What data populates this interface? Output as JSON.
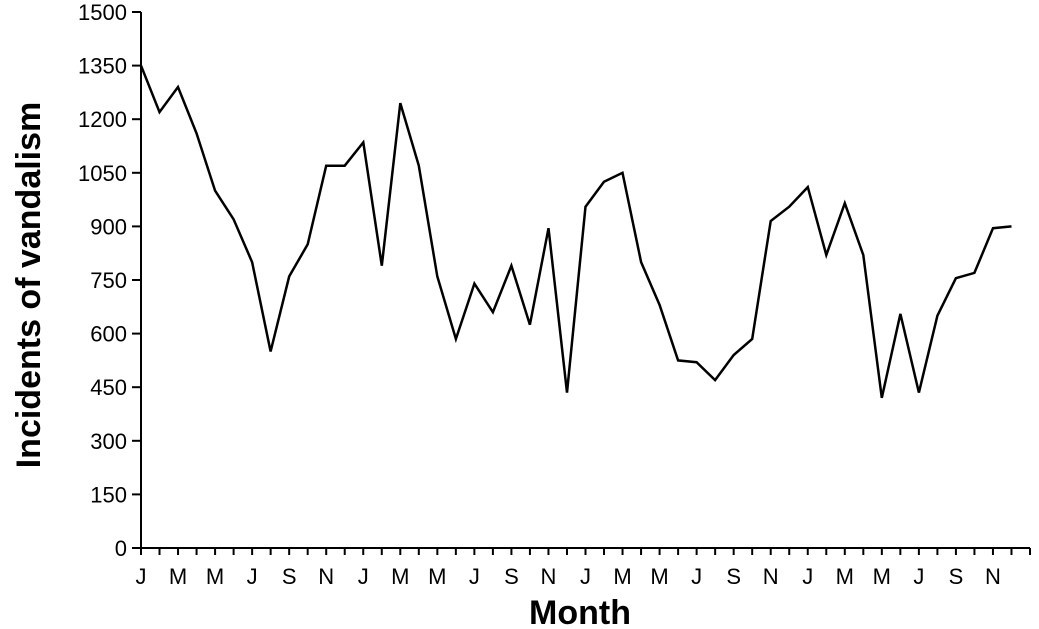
{
  "chart_data": {
    "type": "line",
    "title": "",
    "xlabel": "Month",
    "ylabel": "Incidents of vandalism",
    "ylim": [
      0,
      1500
    ],
    "yticks": [
      0,
      150,
      300,
      450,
      600,
      750,
      900,
      1050,
      1200,
      1350,
      1500
    ],
    "ytick_labels": [
      "0",
      "150",
      "300",
      "450",
      "600",
      "750",
      "900",
      "1050",
      "1200",
      "1350",
      "1500"
    ],
    "xtick_labels": [
      "J",
      "M",
      "M",
      "J",
      "S",
      "N",
      "J",
      "M",
      "M",
      "J",
      "S",
      "N",
      "J",
      "M",
      "M",
      "J",
      "S",
      "N",
      "J",
      "M",
      "M",
      "J",
      "S",
      "N"
    ],
    "grid": false,
    "line_color": "#000000",
    "series": [
      {
        "values": [
          1350,
          1220,
          1290,
          1160,
          1000,
          920,
          800,
          550,
          760,
          850,
          1070,
          1070,
          1135,
          790,
          1245,
          1070,
          760,
          585,
          740,
          660,
          790,
          625,
          895,
          435,
          955,
          1025,
          1050,
          800,
          680,
          525,
          520,
          470,
          540,
          585,
          915,
          955,
          1010,
          820,
          965,
          820,
          420,
          655,
          435,
          650,
          755,
          770,
          895,
          900
        ]
      }
    ]
  }
}
